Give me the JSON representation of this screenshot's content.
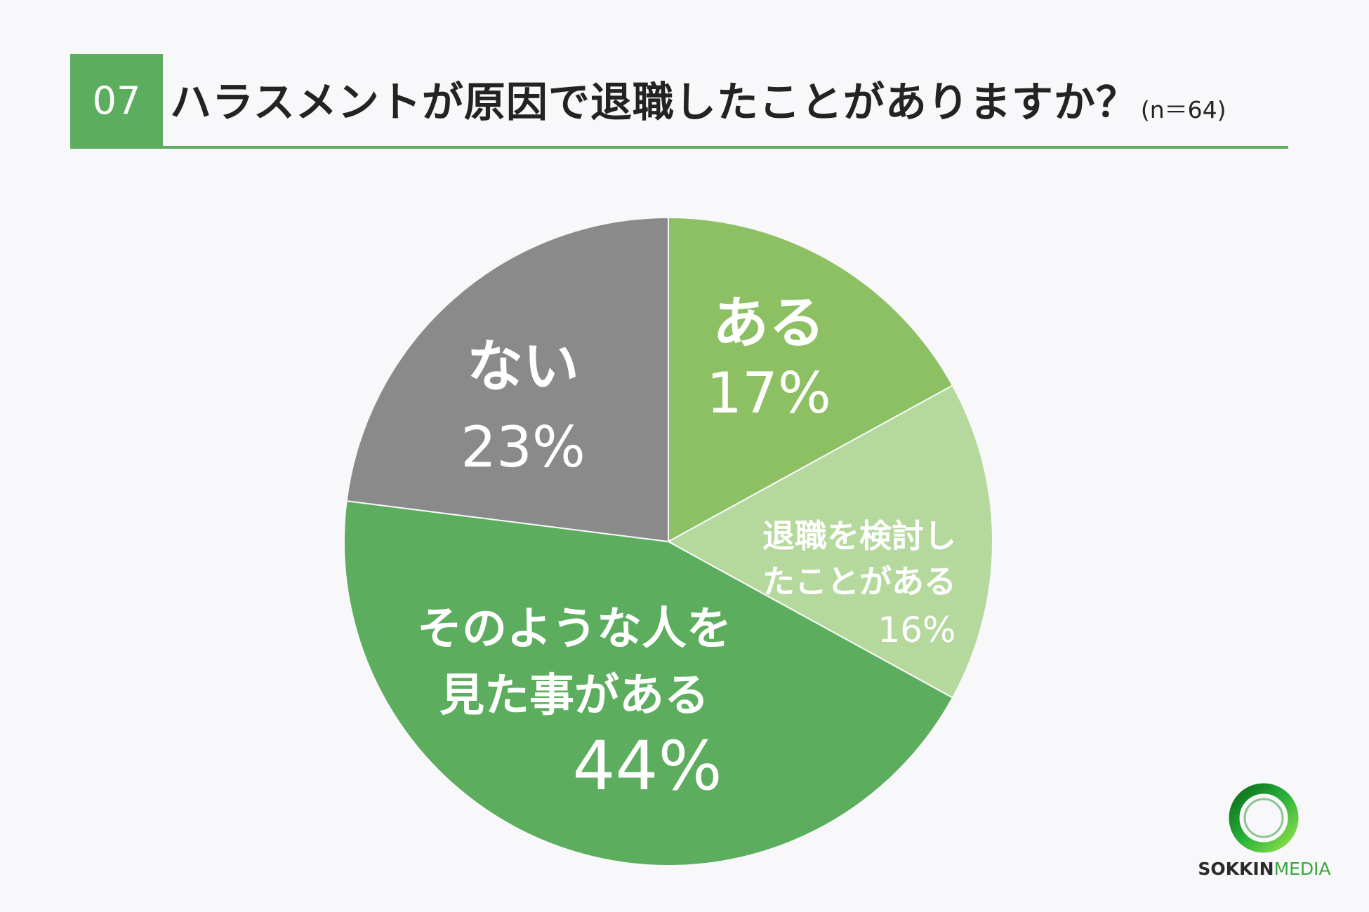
{
  "header": {
    "number": "07",
    "title": "ハラスメントが原因で退職したことがありますか？",
    "sample_size": "(n＝64)"
  },
  "chart_data": {
    "type": "pie",
    "title": "ハラスメントが原因で退職したことがありますか？",
    "slices": [
      {
        "label": "ある",
        "value": 17,
        "value_label": "17%",
        "color": "#8dc063"
      },
      {
        "label": "退職を検討したことがある",
        "value": 16,
        "value_label": "16%",
        "color": "#b5d99d"
      },
      {
        "label": "そのような人を見た事がある",
        "value": 44,
        "value_label": "44%",
        "color": "#5cad5e"
      },
      {
        "label": "ない",
        "value": 23,
        "value_label": "23%",
        "color": "#8a8a8a"
      }
    ]
  },
  "logo": {
    "brand": "SOKKIN",
    "suffix": "MEDIA"
  },
  "colors": {
    "accent": "#5cad5e",
    "background": "#f8f8fa"
  }
}
